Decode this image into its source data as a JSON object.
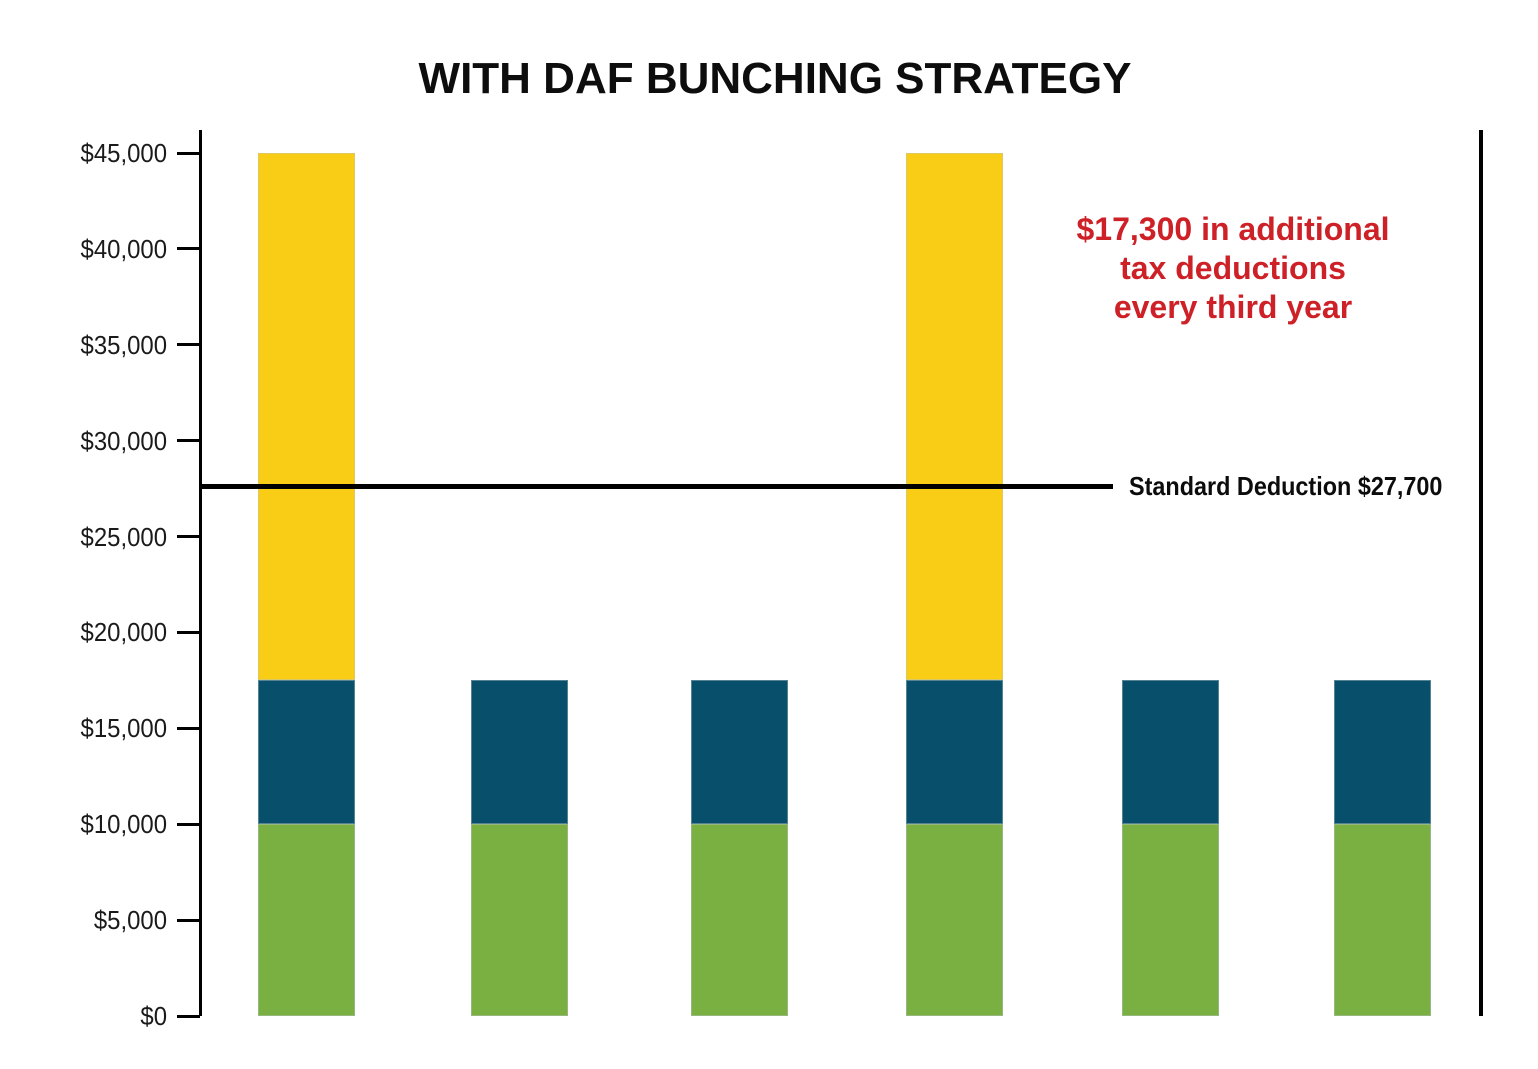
{
  "chart_data": {
    "type": "bar",
    "stacked": true,
    "title": "WITH DAF BUNCHING STRATEGY",
    "num_bars": 6,
    "series": [
      {
        "name": "green-base-segment",
        "color": "#7AAF42",
        "values": [
          10000,
          10000,
          10000,
          10000,
          10000,
          10000
        ]
      },
      {
        "name": "blue-middle-segment",
        "color": "#074F6B",
        "values": [
          7500,
          7500,
          7500,
          7500,
          7500,
          7500
        ]
      },
      {
        "name": "yellow-bunched-segment",
        "color": "#F9CD15",
        "values": [
          27500,
          0,
          0,
          27500,
          0,
          0
        ]
      }
    ],
    "xlabel": "",
    "ylabel": "",
    "ylim": [
      0,
      45000
    ],
    "y_tick_step": 5000,
    "y_tick_labels": [
      "$0",
      "$5,000",
      "$10,000",
      "$15,000",
      "$20,000",
      "$25,000",
      "$30,000",
      "$35,000",
      "$40,000",
      "$45,000"
    ],
    "grid": false,
    "legend": "none",
    "axis_color": "#000000",
    "reference_line": {
      "value": 27700,
      "label": "Standard Deduction $27,700",
      "color": "#000000"
    },
    "annotation": {
      "lines": [
        "$17,300 in additional",
        "tax deductions",
        "every third year"
      ],
      "color": "#CE2127"
    }
  }
}
